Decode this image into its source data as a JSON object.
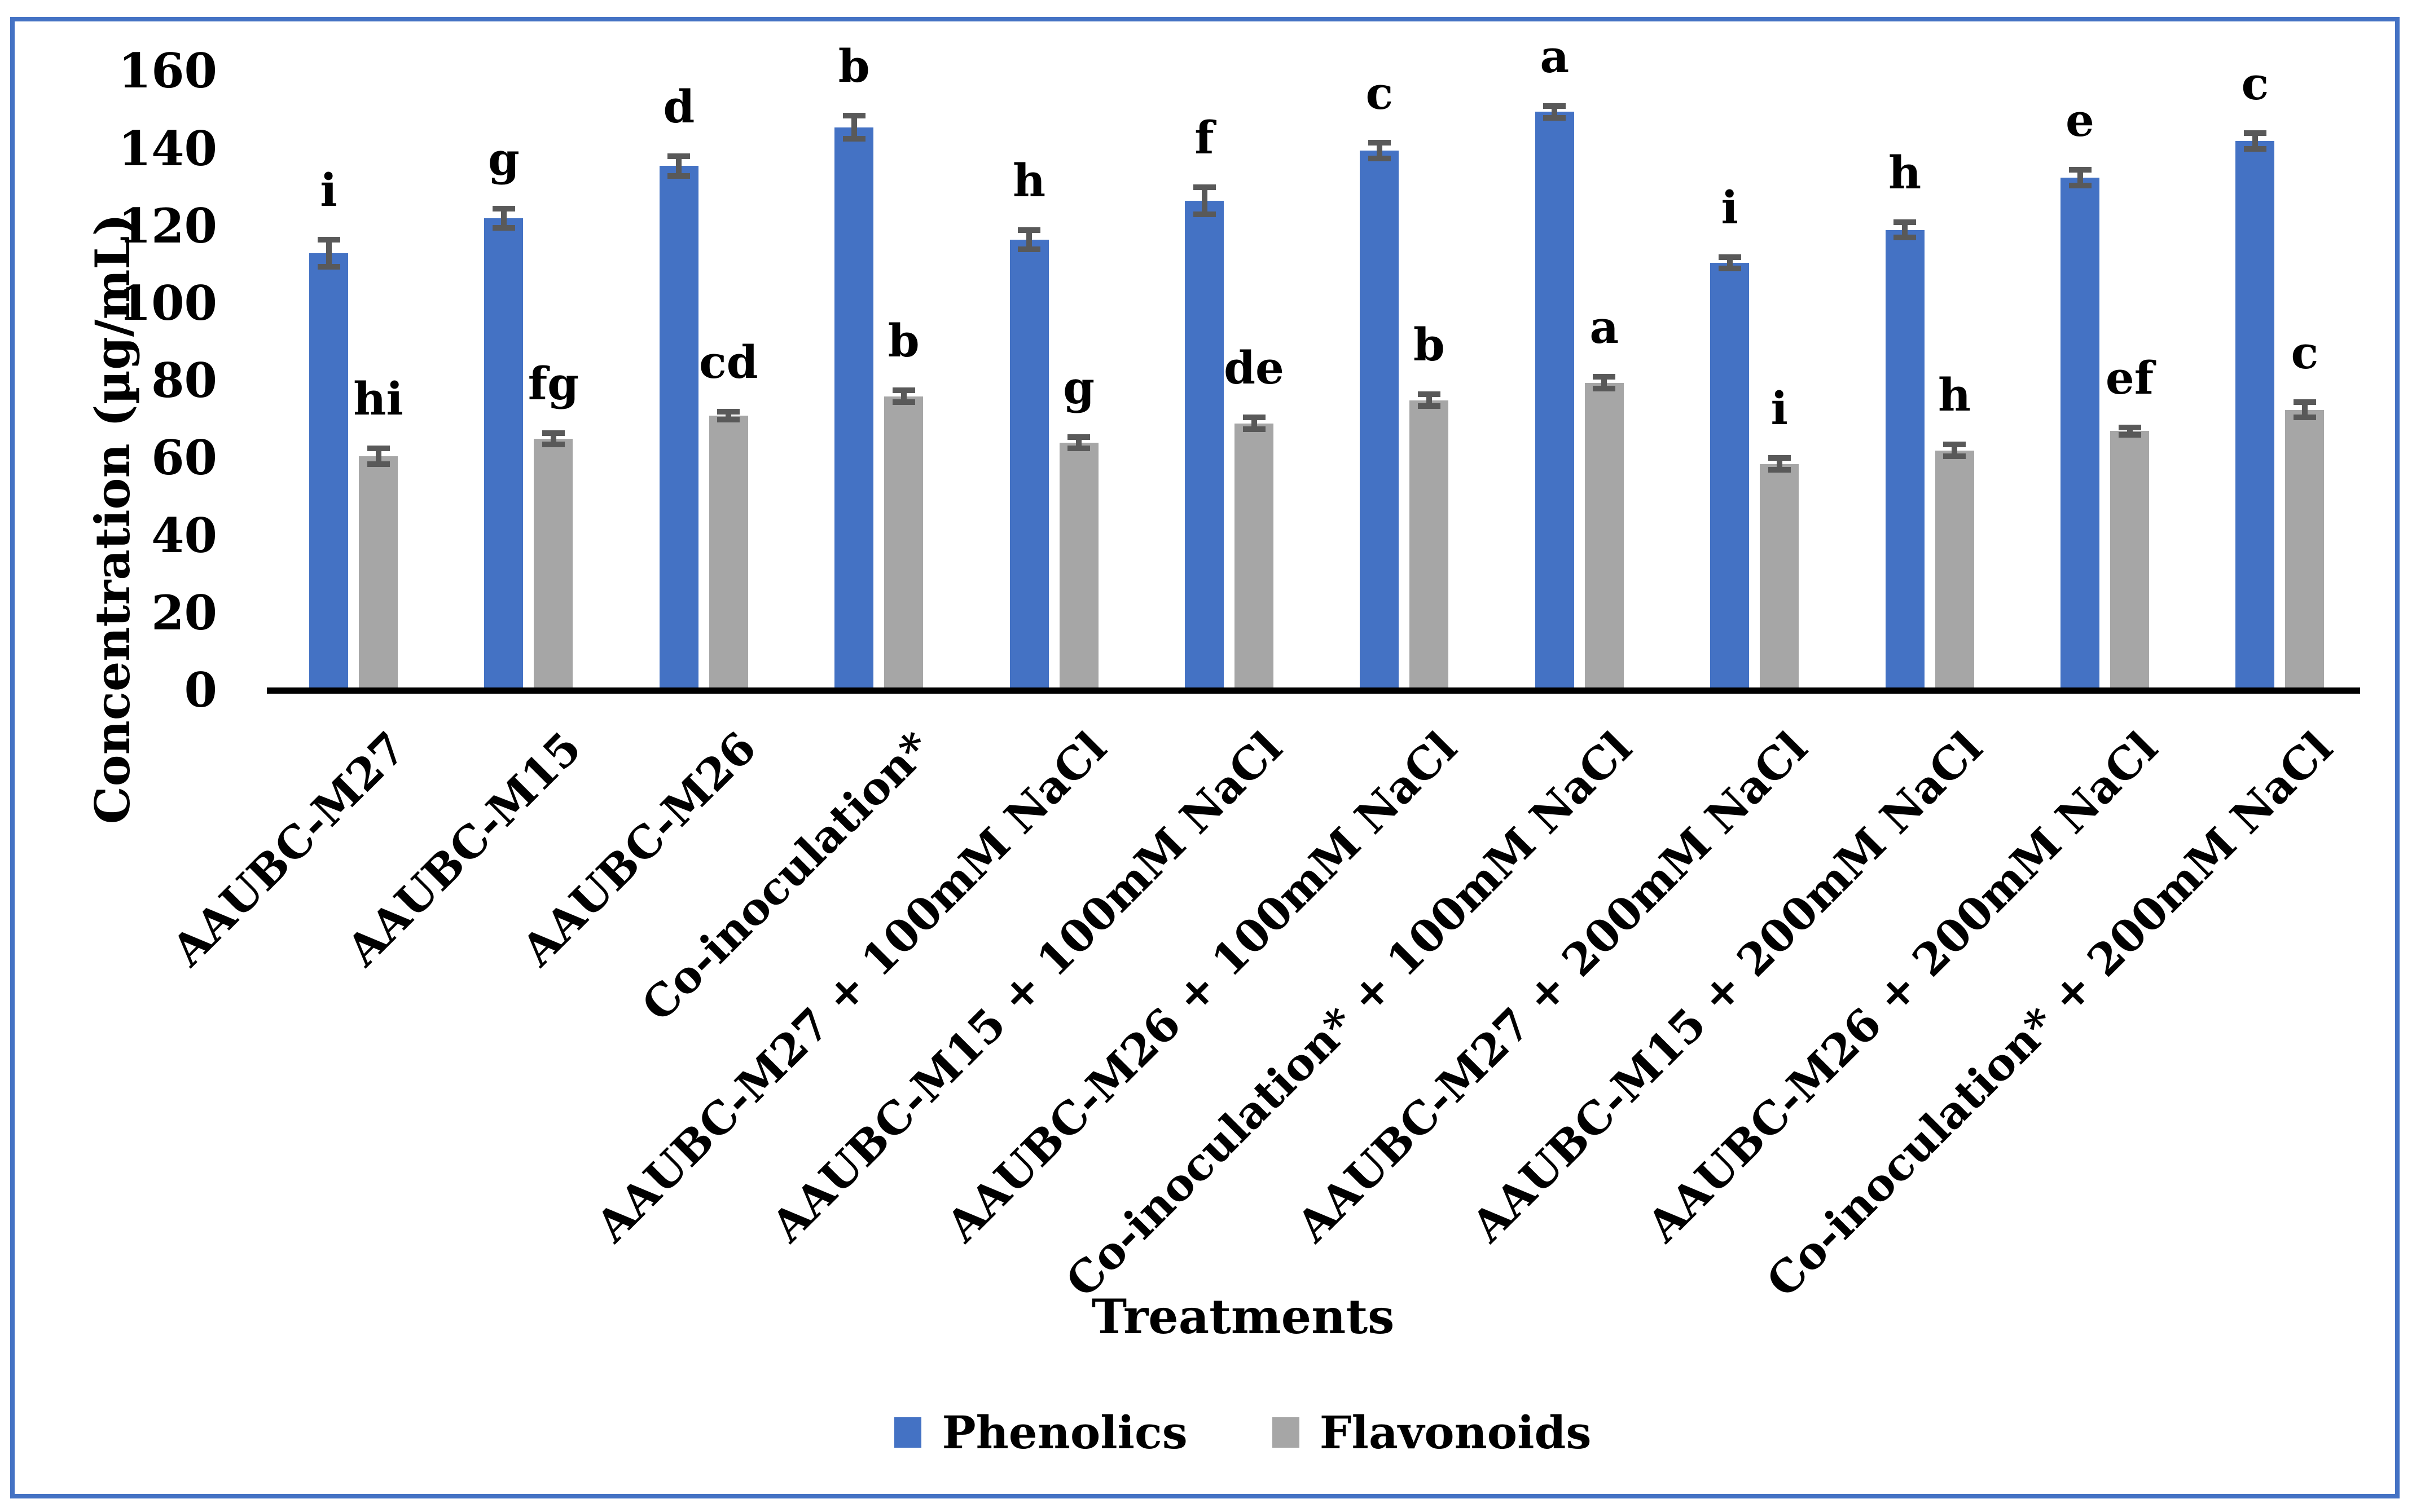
{
  "frame": {
    "border_color": "#4472C4"
  },
  "chart_data": {
    "type": "bar",
    "title": "",
    "xlabel": "Treatments",
    "ylabel": "Concentration (µg/mL)",
    "ylim": [
      0,
      160
    ],
    "ytick_step": 20,
    "yticks": [
      0,
      20,
      40,
      60,
      80,
      100,
      120,
      140,
      160
    ],
    "grid": false,
    "legend_position": "bottom",
    "axis_color": "#000000",
    "error_bar_color": "#595959",
    "categories": [
      "AAUBC-M27",
      "AAUBC-M15",
      "AAUBC-M26",
      "Co-inoculation*",
      "AAUBC-M27 + 100mM NaCl",
      "AAUBC-M15 + 100mM NaCl",
      "AAUBC-M26 + 100mM NaCl",
      "Co-inoculation* + 100mM NaCl",
      "AAUBC-M27 + 200mM NaCl",
      "AAUBC-M15 + 200mM NaCl",
      "AAUBC-M26 + 200mM NaCl",
      "Co-inoculation* + 200mM NaCl"
    ],
    "series": [
      {
        "name": "Phenolics",
        "color": "#4472C4",
        "values": [
          113,
          122,
          135.5,
          145.5,
          116.5,
          126.5,
          139.5,
          149.5,
          110.5,
          119,
          132.5,
          142
        ],
        "errors": [
          3.5,
          2.5,
          2.5,
          3,
          2.5,
          3.5,
          2,
          1.5,
          1.5,
          2,
          2,
          2
        ],
        "letters": [
          "i",
          "g",
          "d",
          "b",
          "h",
          "f",
          "c",
          "a",
          "i",
          "h",
          "e",
          "c"
        ]
      },
      {
        "name": "Flavonoids",
        "color": "#A6A6A6",
        "values": [
          60.5,
          65,
          71,
          76,
          64,
          69,
          75,
          79.5,
          58.5,
          62,
          67,
          72.5
        ],
        "errors": [
          2,
          1.5,
          1,
          1.5,
          1.5,
          1.5,
          1.5,
          1.5,
          1.5,
          1.5,
          1,
          2
        ],
        "letters": [
          "hi",
          "fg",
          "cd",
          "b",
          "g",
          "de",
          "b",
          "a",
          "i",
          "h",
          "ef",
          "c"
        ]
      }
    ]
  }
}
